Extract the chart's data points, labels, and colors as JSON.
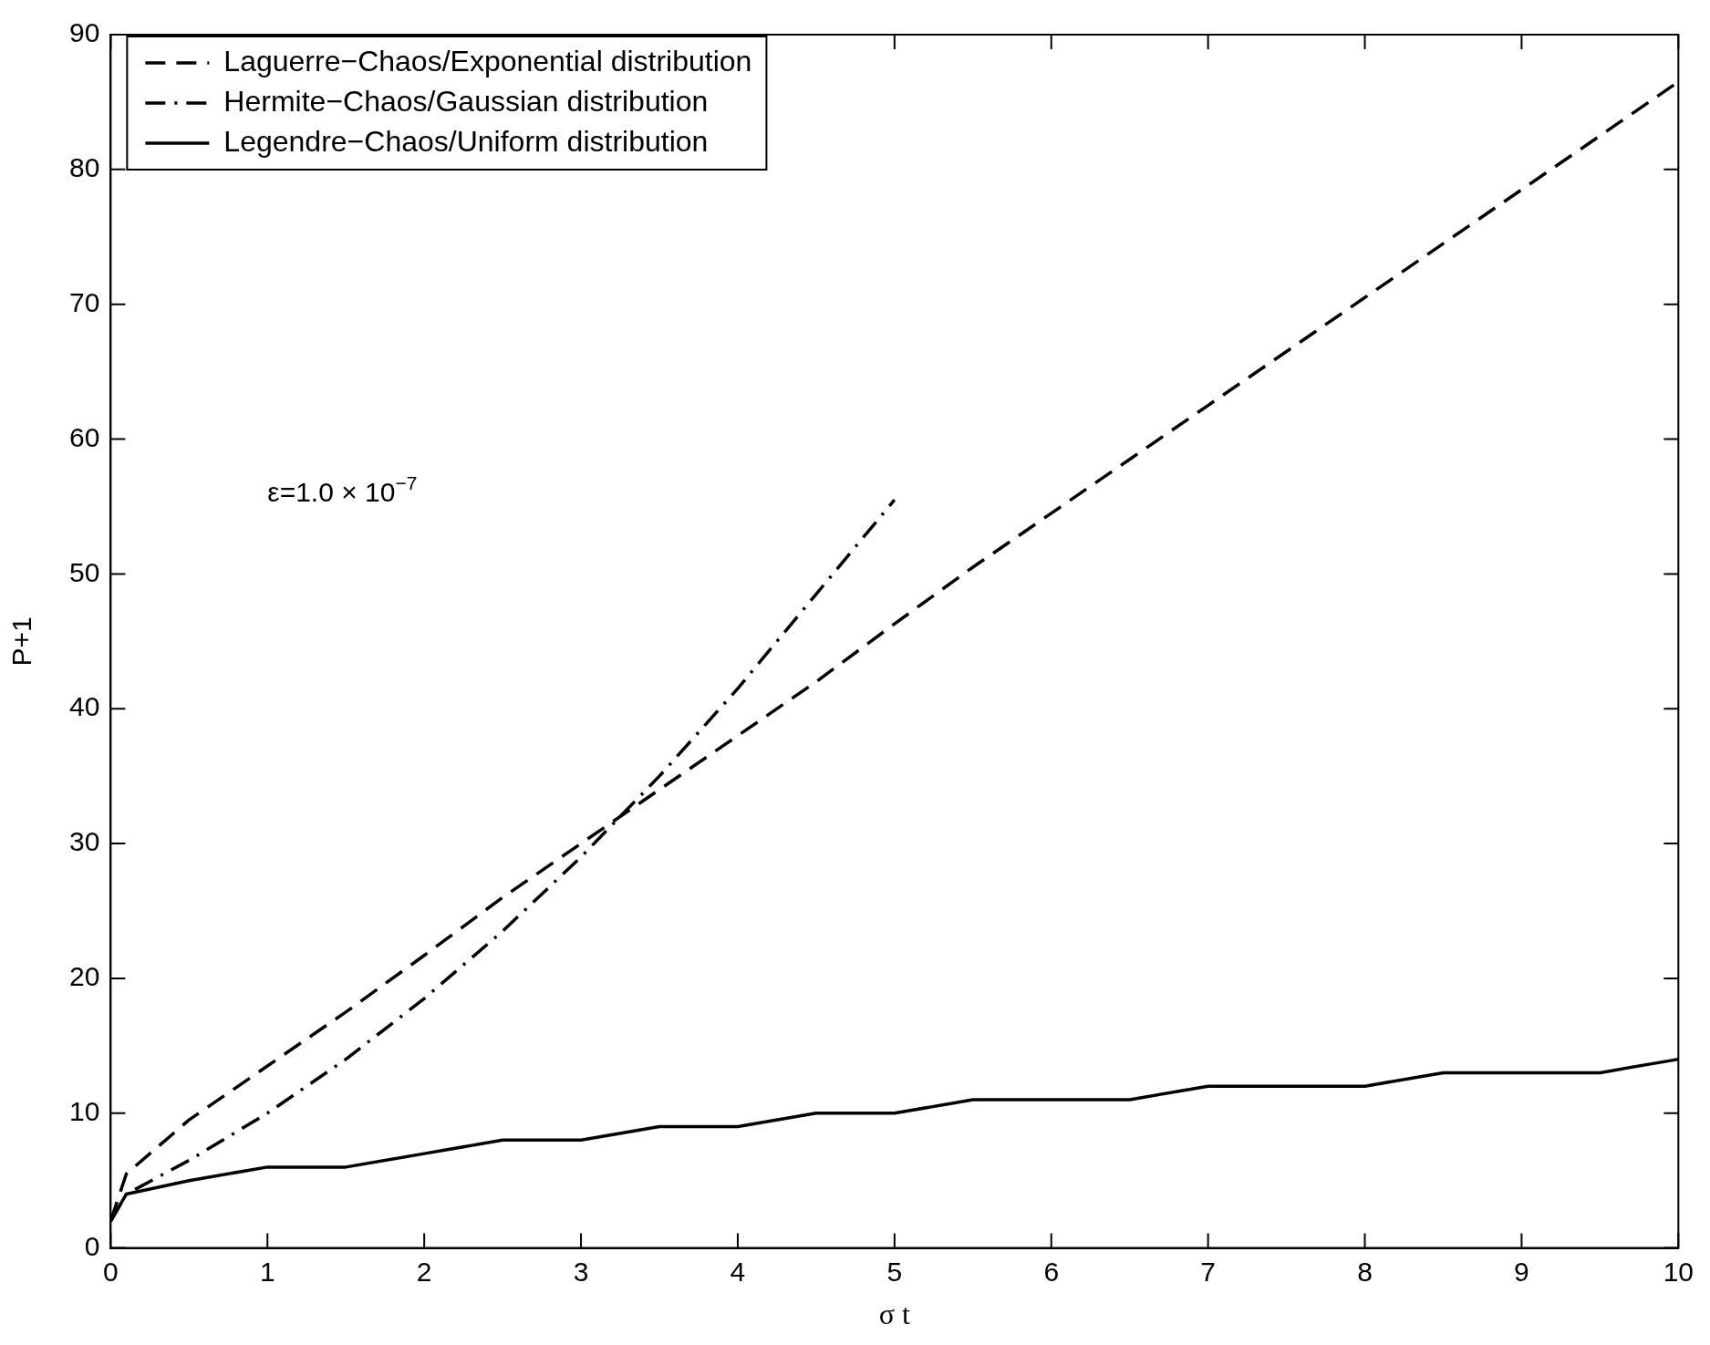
{
  "chart_data": {
    "type": "line",
    "xlabel": "σ t",
    "ylabel": "P+1",
    "xlim": [
      0,
      10
    ],
    "ylim": [
      0,
      90
    ],
    "xticks": [
      0,
      1,
      2,
      3,
      4,
      5,
      6,
      7,
      8,
      9,
      10
    ],
    "yticks": [
      0,
      10,
      20,
      30,
      40,
      50,
      60,
      70,
      80,
      90
    ],
    "grid": false,
    "legend": "top left",
    "marker": "none",
    "annotations": [
      "ε=1.0 × 10$^{−7}$"
    ],
    "series": [
      {
        "name": "Laguerre−Chaos/Exponential distribution",
        "color": "#000000",
        "line_style": "dashed",
        "x": [
          0,
          0.1,
          0.5,
          1,
          1.5,
          2,
          2.5,
          3,
          3.5,
          4,
          4.5,
          5,
          5.5,
          6,
          6.5,
          7,
          7.5,
          8,
          8.5,
          9,
          9.5,
          10
        ],
        "values": [
          2,
          5.5,
          9.5,
          13.5,
          17.5,
          21.7,
          26,
          30,
          34,
          38,
          42,
          46.3,
          50.5,
          54.5,
          58.5,
          62.5,
          66.5,
          70.5,
          74.5,
          78.5,
          82.5,
          86.5
        ]
      },
      {
        "name": "Hermite−Chaos/Gaussian distribution",
        "color": "#000000",
        "line_style": "dashdot",
        "x": [
          0,
          0.1,
          0.5,
          1,
          1.5,
          2,
          2.5,
          3,
          3.5,
          4,
          4.5,
          5
        ],
        "values": [
          2,
          4,
          6.5,
          10,
          14,
          18.5,
          23.5,
          29,
          35,
          41.5,
          48.5,
          55.5
        ]
      },
      {
        "name": "Legendre−Chaos/Uniform distribution",
        "color": "#000000",
        "line_style": "solid",
        "x": [
          0,
          0.1,
          0.5,
          1,
          1.5,
          2,
          2.5,
          3,
          3.5,
          4,
          4.5,
          5,
          5.5,
          6,
          6.5,
          7,
          7.5,
          8,
          8.5,
          9,
          9.5,
          10
        ],
        "values": [
          2,
          4,
          5,
          6,
          6,
          7,
          8,
          8,
          9,
          9,
          10,
          10,
          11,
          11,
          11,
          12,
          12,
          12,
          13,
          13,
          13,
          14
        ]
      }
    ]
  }
}
